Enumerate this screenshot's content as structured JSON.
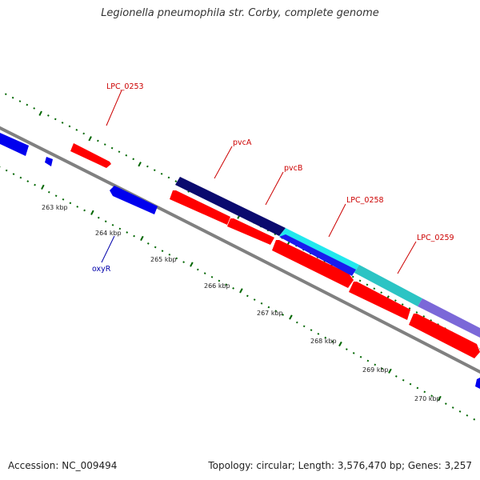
{
  "title": "Legionella pneumophila str. Corby, complete genome",
  "footer": {
    "accession": "Accession: NC_009494",
    "summary": "Topology: circular; Length: 3,576,470 bp; Genes: 3,257"
  },
  "colors": {
    "forward": "#ff0000",
    "reverse": "#0000ff",
    "backbone": "#888888",
    "tick": "#006600"
  },
  "scale_labels": [
    "263 kbp",
    "264 kbp",
    "265 kbp",
    "266 kbp",
    "267 kbp",
    "268 kbp",
    "269 kbp",
    "270 kbp"
  ],
  "gene_labels": [
    {
      "text": "LPC_0253",
      "color": "#cc0000"
    },
    {
      "text": "pvcA",
      "color": "#cc0000"
    },
    {
      "text": "pvcB",
      "color": "#cc0000"
    },
    {
      "text": "LPC_0258",
      "color": "#cc0000"
    },
    {
      "text": "LPC_0259",
      "color": "#cc0000"
    },
    {
      "text": "oxyR",
      "color": "#0000aa"
    }
  ]
}
